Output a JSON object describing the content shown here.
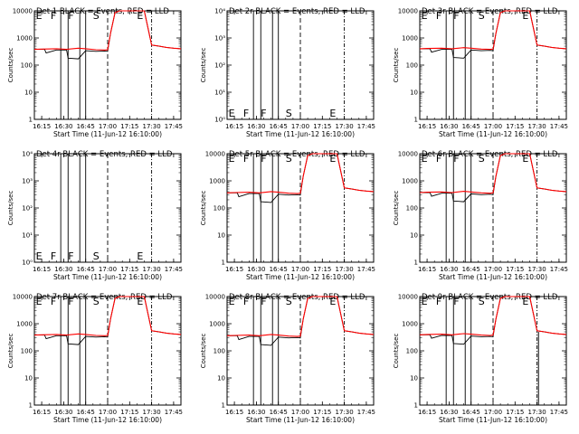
{
  "figure": {
    "xlabel": "Start Time (11-Jun-12 16:10:00)",
    "ylabel": "Counts/sec",
    "x_ticks": [
      "16:15",
      "16:30",
      "16:45",
      "17:00",
      "17:15",
      "17:30",
      "17:45"
    ],
    "y_ticks": [
      "1",
      "10",
      "100",
      "1000",
      "10000"
    ],
    "y_ticks_small": [
      "10⁰",
      "10¹",
      "10²",
      "10³",
      "10⁴"
    ],
    "colors": {
      "events": "#000000",
      "lld": "#ff0000"
    }
  },
  "chart_data": [
    {
      "title": "Det 1  BLACK = Events, RED = LLD",
      "type": "line",
      "yscale": "log",
      "ylim": [
        1,
        10000
      ],
      "labels": [
        "E",
        "F",
        "F",
        "S",
        "E"
      ],
      "has_data": true,
      "spike": false,
      "series": [
        {
          "name": "BLACK = Events",
          "x": [
            "16:10",
            "16:15",
            "16:17",
            "16:18",
            "16:25",
            "16:32",
            "16:33",
            "16:40",
            "16:45",
            "16:52",
            "16:58",
            "17:00",
            "17:02",
            "17:05",
            "17:08",
            "17:25",
            "17:30",
            "17:35",
            "17:40",
            "17:45",
            "17:50"
          ],
          "y": [
            380,
            380,
            380,
            280,
            360,
            360,
            180,
            170,
            340,
            320,
            330,
            320,
            1500,
            8500,
            10000,
            10000,
            550,
            500,
            450,
            420,
            400
          ]
        },
        {
          "name": "RED = LLD",
          "x": [
            "16:10",
            "16:15",
            "16:25",
            "16:32",
            "16:40",
            "16:45",
            "16:52",
            "16:58",
            "17:00",
            "17:02",
            "17:05",
            "17:08",
            "17:25",
            "17:30",
            "17:35",
            "17:40",
            "17:45",
            "17:50"
          ],
          "y": [
            380,
            390,
            400,
            380,
            420,
            400,
            370,
            360,
            370,
            1500,
            8500,
            10000,
            10000,
            550,
            500,
            450,
            420,
            400
          ]
        }
      ]
    },
    {
      "title": "Det 2r BLACK = Events, RED = LLD",
      "type": "line",
      "yscale": "log",
      "ylim": [
        1,
        10000
      ],
      "labels": [
        "E",
        "F",
        "F",
        "S",
        "E"
      ],
      "has_data": false,
      "spike": false,
      "series": []
    },
    {
      "title": "Det 3r BLACK = Events, RED = LLD",
      "type": "line",
      "yscale": "log",
      "ylim": [
        1,
        10000
      ],
      "labels": [
        "E",
        "F",
        "F",
        "S",
        "E"
      ],
      "has_data": true,
      "spike": false,
      "series": [
        {
          "name": "BLACK = Events",
          "x": [
            "16:10",
            "16:15",
            "16:17",
            "16:18",
            "16:25",
            "16:32",
            "16:33",
            "16:40",
            "16:45",
            "16:52",
            "16:58",
            "17:00",
            "17:02",
            "17:05",
            "17:08",
            "17:25",
            "17:30",
            "17:35",
            "17:40",
            "17:45",
            "17:50"
          ],
          "y": [
            400,
            400,
            400,
            300,
            380,
            380,
            190,
            180,
            360,
            340,
            350,
            340,
            1500,
            8500,
            10000,
            10000,
            550,
            500,
            450,
            420,
            400
          ]
        },
        {
          "name": "RED = LLD",
          "x": [
            "16:10",
            "16:15",
            "16:25",
            "16:32",
            "16:40",
            "16:45",
            "16:52",
            "16:58",
            "17:00",
            "17:02",
            "17:05",
            "17:08",
            "17:25",
            "17:30",
            "17:35",
            "17:40",
            "17:45",
            "17:50"
          ],
          "y": [
            400,
            410,
            420,
            400,
            440,
            420,
            390,
            380,
            390,
            1500,
            8500,
            10000,
            10000,
            550,
            500,
            450,
            420,
            400
          ]
        }
      ]
    },
    {
      "title": "Det 4r BLACK = Events, RED = LLD",
      "type": "line",
      "yscale": "log",
      "ylim": [
        1,
        10000
      ],
      "labels": [
        "E",
        "F",
        "F",
        "S",
        "E"
      ],
      "has_data": false,
      "spike": false,
      "series": []
    },
    {
      "title": "Det 5r BLACK = Events, RED = LLD",
      "type": "line",
      "yscale": "log",
      "ylim": [
        1,
        10000
      ],
      "labels": [
        "E",
        "F",
        "F",
        "S",
        "E"
      ],
      "has_data": true,
      "spike": false,
      "series": [
        {
          "name": "BLACK = Events",
          "x": [
            "16:10",
            "16:15",
            "16:17",
            "16:18",
            "16:25",
            "16:32",
            "16:33",
            "16:40",
            "16:45",
            "16:52",
            "16:58",
            "17:00",
            "17:02",
            "17:05",
            "17:08",
            "17:25",
            "17:30",
            "17:35",
            "17:40",
            "17:45",
            "17:50"
          ],
          "y": [
            360,
            360,
            360,
            260,
            340,
            340,
            170,
            160,
            320,
            300,
            310,
            300,
            1500,
            8500,
            10000,
            10000,
            550,
            500,
            450,
            420,
            400
          ]
        },
        {
          "name": "RED = LLD",
          "x": [
            "16:10",
            "16:15",
            "16:25",
            "16:32",
            "16:40",
            "16:45",
            "16:52",
            "16:58",
            "17:00",
            "17:02",
            "17:05",
            "17:08",
            "17:25",
            "17:30",
            "17:35",
            "17:40",
            "17:45",
            "17:50"
          ],
          "y": [
            360,
            370,
            380,
            360,
            400,
            380,
            350,
            340,
            350,
            1500,
            8500,
            10000,
            10000,
            550,
            500,
            450,
            420,
            400
          ]
        }
      ]
    },
    {
      "title": "Det 6r BLACK = Events, RED = LLD",
      "type": "line",
      "yscale": "log",
      "ylim": [
        1,
        10000
      ],
      "labels": [
        "E",
        "F",
        "F",
        "S",
        "E"
      ],
      "has_data": true,
      "spike": false,
      "series": [
        {
          "name": "BLACK = Events",
          "x": [
            "16:10",
            "16:15",
            "16:17",
            "16:18",
            "16:25",
            "16:32",
            "16:33",
            "16:40",
            "16:45",
            "16:52",
            "16:58",
            "17:00",
            "17:02",
            "17:05",
            "17:08",
            "17:25",
            "17:30",
            "17:35",
            "17:40",
            "17:45",
            "17:50"
          ],
          "y": [
            370,
            370,
            370,
            270,
            350,
            350,
            180,
            170,
            330,
            310,
            320,
            310,
            1500,
            8500,
            10000,
            10000,
            550,
            500,
            450,
            420,
            400
          ]
        },
        {
          "name": "RED = LLD",
          "x": [
            "16:10",
            "16:15",
            "16:25",
            "16:32",
            "16:40",
            "16:45",
            "16:52",
            "16:58",
            "17:00",
            "17:02",
            "17:05",
            "17:08",
            "17:25",
            "17:30",
            "17:35",
            "17:40",
            "17:45",
            "17:50"
          ],
          "y": [
            370,
            380,
            390,
            370,
            410,
            390,
            360,
            350,
            360,
            1500,
            8500,
            10000,
            10000,
            550,
            500,
            450,
            420,
            400
          ]
        }
      ]
    },
    {
      "title": "Det 7r BLACK = Events, RED = LLD",
      "type": "line",
      "yscale": "log",
      "ylim": [
        1,
        10000
      ],
      "labels": [
        "E",
        "F",
        "F",
        "S",
        "E"
      ],
      "has_data": true,
      "spike": false,
      "series": [
        {
          "name": "BLACK = Events",
          "x": [
            "16:10",
            "16:15",
            "16:17",
            "16:18",
            "16:25",
            "16:32",
            "16:33",
            "16:40",
            "16:45",
            "16:52",
            "16:58",
            "17:00",
            "17:02",
            "17:05",
            "17:08",
            "17:25",
            "17:30",
            "17:35",
            "17:40",
            "17:45",
            "17:50"
          ],
          "y": [
            380,
            380,
            380,
            280,
            360,
            360,
            180,
            170,
            340,
            320,
            330,
            320,
            1500,
            8500,
            10000,
            10000,
            550,
            500,
            450,
            420,
            400
          ]
        },
        {
          "name": "RED = LLD",
          "x": [
            "16:10",
            "16:15",
            "16:25",
            "16:32",
            "16:40",
            "16:45",
            "16:52",
            "16:58",
            "17:00",
            "17:02",
            "17:05",
            "17:08",
            "17:25",
            "17:30",
            "17:35",
            "17:40",
            "17:45",
            "17:50"
          ],
          "y": [
            380,
            390,
            400,
            380,
            420,
            400,
            370,
            360,
            370,
            1500,
            8500,
            10000,
            10000,
            550,
            500,
            450,
            420,
            400
          ]
        }
      ]
    },
    {
      "title": "Det 8r BLACK = Events, RED = LLD",
      "type": "line",
      "yscale": "log",
      "ylim": [
        1,
        10000
      ],
      "labels": [
        "E",
        "F",
        "F",
        "S",
        "E"
      ],
      "has_data": true,
      "spike": false,
      "series": [
        {
          "name": "BLACK = Events",
          "x": [
            "16:10",
            "16:15",
            "16:17",
            "16:18",
            "16:25",
            "16:32",
            "16:33",
            "16:40",
            "16:45",
            "16:52",
            "16:58",
            "17:00",
            "17:02",
            "17:05",
            "17:08",
            "17:25",
            "17:30",
            "17:35",
            "17:40",
            "17:45",
            "17:50"
          ],
          "y": [
            360,
            360,
            360,
            260,
            340,
            340,
            170,
            160,
            320,
            300,
            310,
            300,
            1500,
            8500,
            10000,
            10000,
            550,
            500,
            450,
            420,
            400
          ]
        },
        {
          "name": "RED = LLD",
          "x": [
            "16:10",
            "16:15",
            "16:25",
            "16:32",
            "16:40",
            "16:45",
            "16:52",
            "16:58",
            "17:00",
            "17:02",
            "17:05",
            "17:08",
            "17:25",
            "17:30",
            "17:35",
            "17:40",
            "17:45",
            "17:50"
          ],
          "y": [
            360,
            370,
            380,
            360,
            400,
            380,
            350,
            340,
            350,
            1500,
            8500,
            10000,
            10000,
            550,
            500,
            450,
            420,
            400
          ]
        }
      ]
    },
    {
      "title": "Det 9r BLACK = Events, RED = LLD",
      "type": "line",
      "yscale": "log",
      "ylim": [
        1,
        10000
      ],
      "labels": [
        "E",
        "F",
        "F",
        "S",
        "E"
      ],
      "has_data": true,
      "spike": true,
      "series": [
        {
          "name": "BLACK = Events",
          "x": [
            "16:10",
            "16:15",
            "16:17",
            "16:18",
            "16:25",
            "16:32",
            "16:33",
            "16:40",
            "16:45",
            "16:52",
            "16:58",
            "17:00",
            "17:02",
            "17:05",
            "17:08",
            "17:25",
            "17:30",
            "17:35",
            "17:40",
            "17:45",
            "17:50"
          ],
          "y": [
            390,
            390,
            390,
            290,
            370,
            370,
            185,
            175,
            350,
            330,
            340,
            330,
            1500,
            8500,
            10000,
            10000,
            550,
            500,
            450,
            420,
            400
          ]
        },
        {
          "name": "RED = LLD",
          "x": [
            "16:10",
            "16:15",
            "16:25",
            "16:32",
            "16:40",
            "16:45",
            "16:52",
            "16:58",
            "17:00",
            "17:02",
            "17:05",
            "17:08",
            "17:25",
            "17:30",
            "17:35",
            "17:40",
            "17:45",
            "17:50"
          ],
          "y": [
            390,
            400,
            410,
            390,
            430,
            410,
            380,
            370,
            380,
            1500,
            8500,
            10000,
            10000,
            550,
            500,
            450,
            420,
            400
          ]
        }
      ]
    }
  ]
}
